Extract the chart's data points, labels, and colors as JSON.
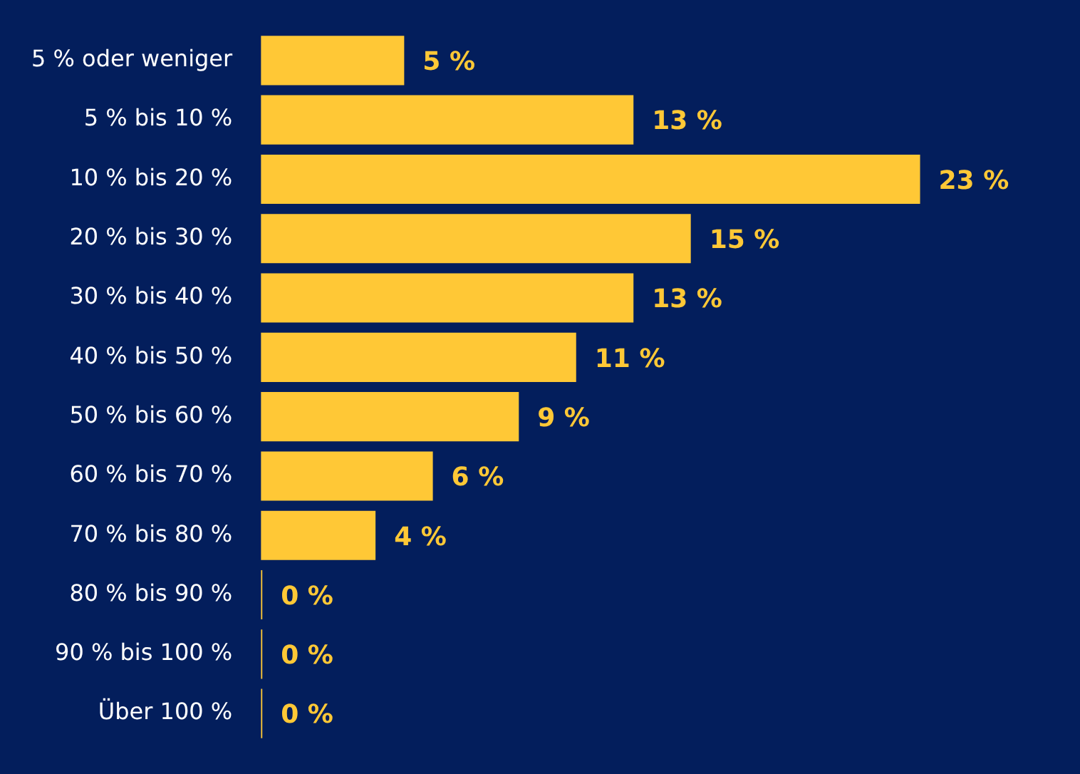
{
  "chart_data": {
    "type": "bar",
    "orientation": "horizontal",
    "categories": [
      "5 % oder weniger",
      "5 % bis 10 %",
      "10 % bis 20 %",
      "20 % bis 30 %",
      "30 % bis 40 %",
      "40 % bis 50 %",
      "50 % bis 60 %",
      "60 % bis 70 %",
      "70 % bis 80 %",
      "80 % bis 90 %",
      "90 % bis 100 %",
      "Über 100 %"
    ],
    "values": [
      5,
      13,
      23,
      15,
      13,
      11,
      9,
      6,
      4,
      0,
      0,
      0
    ],
    "value_labels": [
      "5 %",
      "13 %",
      "23 %",
      "15 %",
      "13 %",
      "11 %",
      "9 %",
      "6 %",
      "4 %",
      "0 %",
      "0 %",
      "0 %"
    ],
    "color": "#ffc836"
  }
}
